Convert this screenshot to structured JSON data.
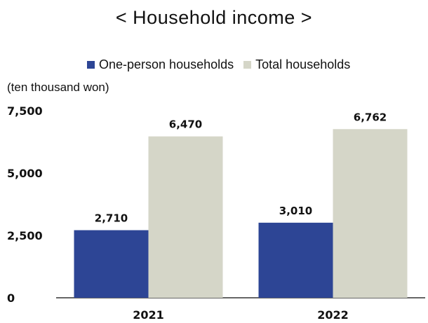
{
  "title": "< Household income >",
  "unit_label": "(ten thousand won)",
  "colors": {
    "series_1": "#2d4595",
    "series_2": "#d5d6c8",
    "axis": "#333333"
  },
  "chart_data": {
    "type": "bar",
    "title": "< Household income >",
    "xlabel": "",
    "ylabel": "(ten thousand won)",
    "categories": [
      "2021",
      "2022"
    ],
    "series": [
      {
        "name": "One-person households",
        "values": [
          2710,
          3010
        ],
        "labels": [
          "2,710",
          "3,010"
        ]
      },
      {
        "name": "Total households",
        "values": [
          6470,
          6762
        ],
        "labels": [
          "6,470",
          "6,762"
        ]
      }
    ],
    "ylim": [
      0,
      7500
    ],
    "yticks": [
      0,
      2500,
      5000,
      7500
    ],
    "ytick_labels": [
      "0",
      "2,500",
      "5,000",
      "7,500"
    ],
    "grid": false,
    "legend_position": "top"
  }
}
